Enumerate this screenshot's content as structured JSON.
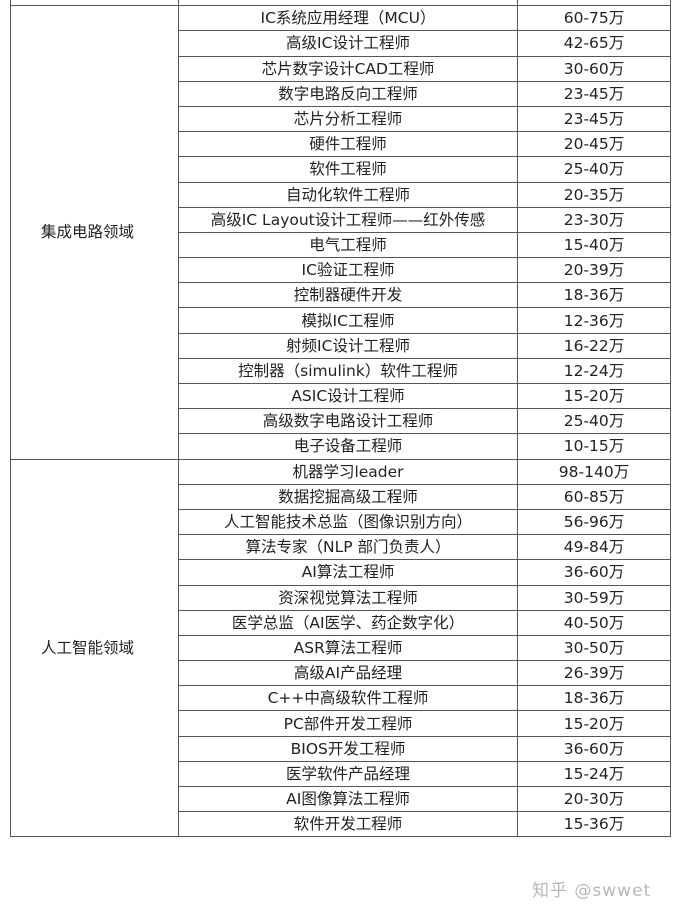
{
  "groups": [
    {
      "category": "集成电路领域",
      "rows": [
        {
          "position": "IC系统应用经理（MCU）",
          "salary": "60-75万"
        },
        {
          "position": "高级IC设计工程师",
          "salary": "42-65万"
        },
        {
          "position": "芯片数字设计CAD工程师",
          "salary": "30-60万"
        },
        {
          "position": "数字电路反向工程师",
          "salary": "23-45万"
        },
        {
          "position": "芯片分析工程师",
          "salary": "23-45万"
        },
        {
          "position": "硬件工程师",
          "salary": "20-45万"
        },
        {
          "position": "软件工程师",
          "salary": "25-40万"
        },
        {
          "position": "自动化软件工程师",
          "salary": "20-35万"
        },
        {
          "position": "高级IC Layout设计工程师——红外传感",
          "salary": "23-30万"
        },
        {
          "position": "电气工程师",
          "salary": "15-40万"
        },
        {
          "position": "IC验证工程师",
          "salary": "20-39万"
        },
        {
          "position": "控制器硬件开发",
          "salary": "18-36万"
        },
        {
          "position": "模拟IC工程师",
          "salary": "12-36万"
        },
        {
          "position": "射频IC设计工程师",
          "salary": "16-22万"
        },
        {
          "position": "控制器（simulink）软件工程师",
          "salary": "12-24万"
        },
        {
          "position": "ASIC设计工程师",
          "salary": "15-20万"
        },
        {
          "position": "高级数字电路设计工程师",
          "salary": "25-40万"
        },
        {
          "position": "电子设备工程师",
          "salary": "10-15万"
        }
      ]
    },
    {
      "category": "人工智能领域",
      "rows": [
        {
          "position": "机器学习leader",
          "salary": "98-140万"
        },
        {
          "position": "数据挖掘高级工程师",
          "salary": "60-85万"
        },
        {
          "position": "人工智能技术总监（图像识别方向）",
          "salary": "56-96万"
        },
        {
          "position": "算法专家（NLP 部门负责人）",
          "salary": "49-84万"
        },
        {
          "position": "AI算法工程师",
          "salary": "36-60万"
        },
        {
          "position": "资深视觉算法工程师",
          "salary": "30-59万"
        },
        {
          "position": "医学总监（AI医学、药企数字化）",
          "salary": "40-50万"
        },
        {
          "position": "ASR算法工程师",
          "salary": "30-50万"
        },
        {
          "position": "高级AI产品经理",
          "salary": "26-39万"
        },
        {
          "position": "C++中高级软件工程师",
          "salary": "18-36万"
        },
        {
          "position": "PC部件开发工程师",
          "salary": "15-20万"
        },
        {
          "position": "BIOS开发工程师",
          "salary": "36-60万"
        },
        {
          "position": "医学软件产品经理",
          "salary": "15-24万"
        },
        {
          "position": "AI图像算法工程师",
          "salary": "20-30万"
        },
        {
          "position": "软件开发工程师",
          "salary": "15-36万"
        }
      ]
    }
  ],
  "watermark": "知乎 @swwet"
}
